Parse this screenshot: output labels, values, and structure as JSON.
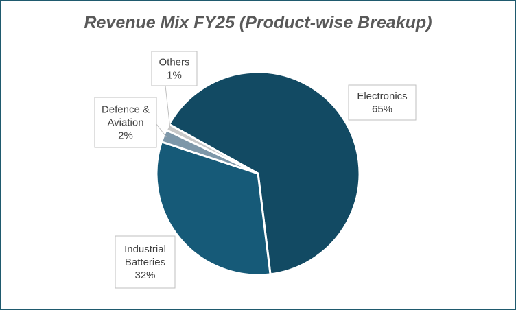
{
  "chart_data": {
    "type": "pie",
    "title": "Revenue Mix FY25 (Product-wise Breakup)",
    "slices": [
      {
        "label": [
          "Electronics"
        ],
        "value": 65,
        "pct_label": "65%",
        "color": "#124a63"
      },
      {
        "label": [
          "Industrial",
          "Batteries"
        ],
        "value": 32,
        "pct_label": "32%",
        "color": "#165a78"
      },
      {
        "label": [
          "Defence &",
          "Aviation"
        ],
        "value": 2,
        "pct_label": "2%",
        "color": "#7d97a9"
      },
      {
        "label": [
          "Others"
        ],
        "value": 1,
        "pct_label": "1%",
        "color": "#c8c8c8"
      }
    ],
    "legend": "none"
  }
}
